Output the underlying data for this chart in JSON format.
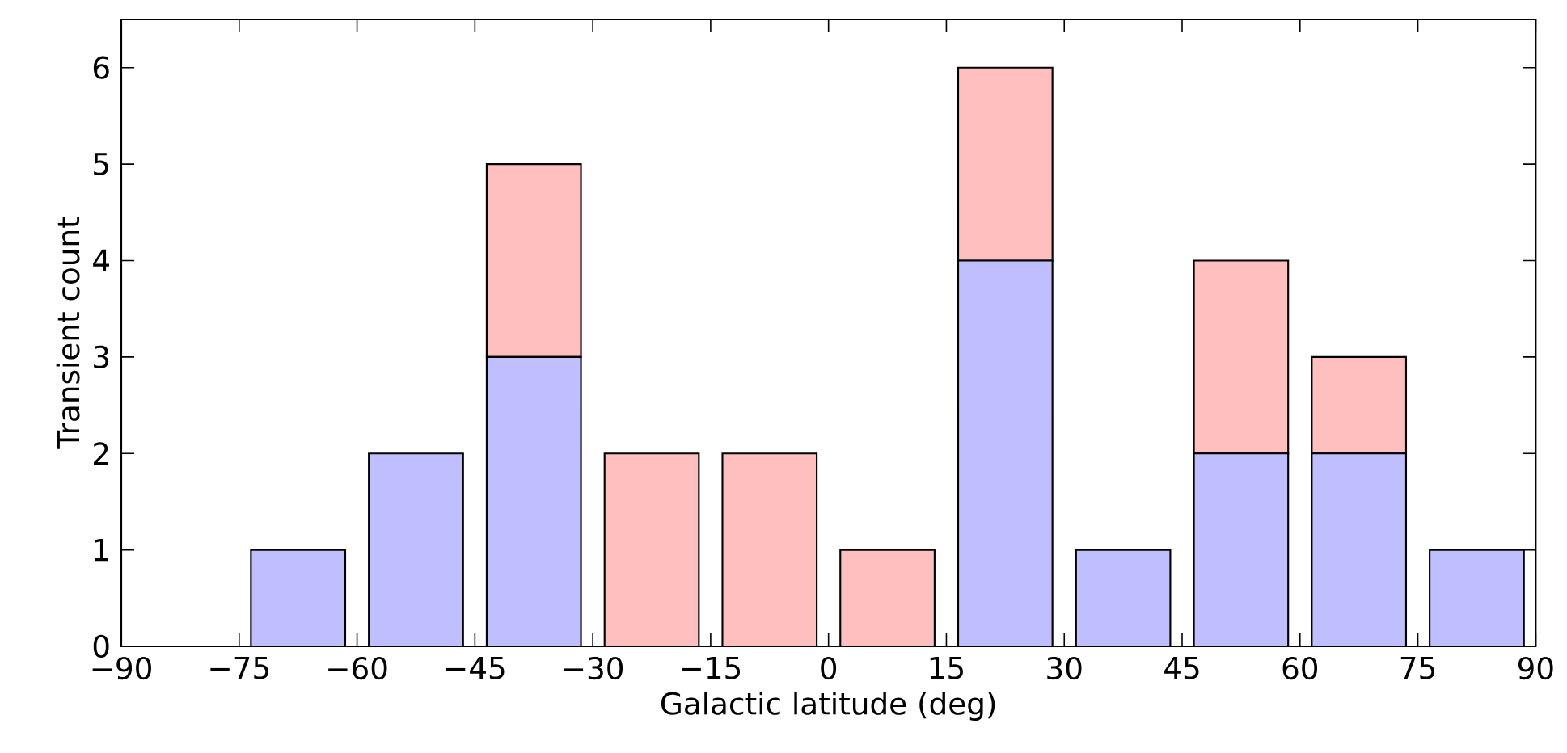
{
  "chart_data": {
    "type": "bar",
    "stacked": true,
    "xlabel": "Galactic latitude (deg)",
    "ylabel": "Transient count",
    "x": [
      -82.5,
      -67.5,
      -52.5,
      -37.5,
      -22.5,
      -7.5,
      7.5,
      22.5,
      37.5,
      52.5,
      67.5,
      82.5
    ],
    "series": [
      {
        "color": "#bfbfff",
        "values": [
          0,
          1,
          2,
          3,
          0,
          0,
          0,
          4,
          1,
          2,
          2,
          1
        ]
      },
      {
        "color": "#ffbfbf",
        "values": [
          0,
          0,
          0,
          2,
          2,
          2,
          1,
          2,
          0,
          2,
          1,
          0
        ]
      }
    ],
    "xlim": [
      -90,
      90
    ],
    "xticks": [
      {
        "value": -90,
        "label": "−90"
      },
      {
        "value": -75,
        "label": "−75"
      },
      {
        "value": -60,
        "label": "−60"
      },
      {
        "value": -45,
        "label": "−45"
      },
      {
        "value": -30,
        "label": "−30"
      },
      {
        "value": -15,
        "label": "−15"
      },
      0,
      15,
      30,
      45,
      60,
      75,
      90
    ],
    "ylim": [
      0,
      6.5
    ],
    "yticks": [
      0,
      1,
      2,
      3,
      4,
      5,
      6
    ]
  }
}
